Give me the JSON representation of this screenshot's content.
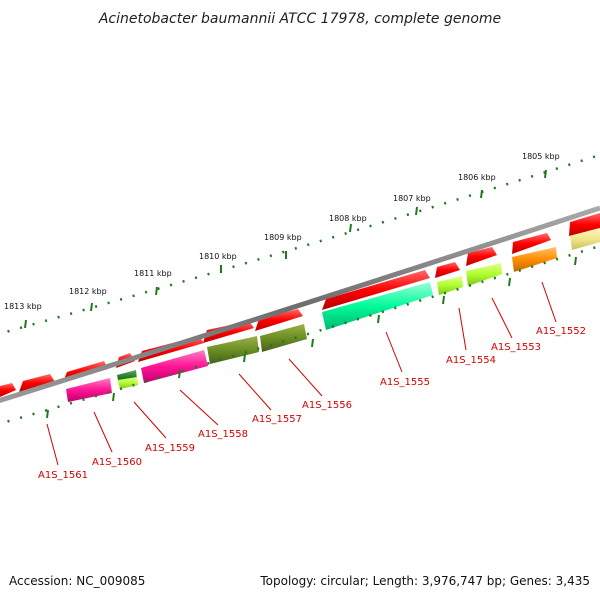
{
  "title": "Acinetobacter baumannii ATCC 17978, complete genome",
  "footer": {
    "accession": "Accession: NC_009085",
    "summary": "Topology: circular; Length: 3,976,747 bp; Genes: 3,435"
  },
  "ticks": [
    "1805 kbp",
    "1806 kbp",
    "1807 kbp",
    "1808 kbp",
    "1809 kbp",
    "1810 kbp",
    "1811 kbp",
    "1812 kbp",
    "1813 kbp"
  ],
  "gene_labels": [
    "A1S_1552",
    "A1S_1553",
    "A1S_1554",
    "A1S_1555",
    "A1S_1556",
    "A1S_1557",
    "A1S_1558",
    "A1S_1559",
    "A1S_1560",
    "A1S_1561"
  ],
  "colors": {
    "backbone": "#777777",
    "tick": "#1e7a1e",
    "label_line": "#d40000",
    "cds": "#ff0000"
  }
}
